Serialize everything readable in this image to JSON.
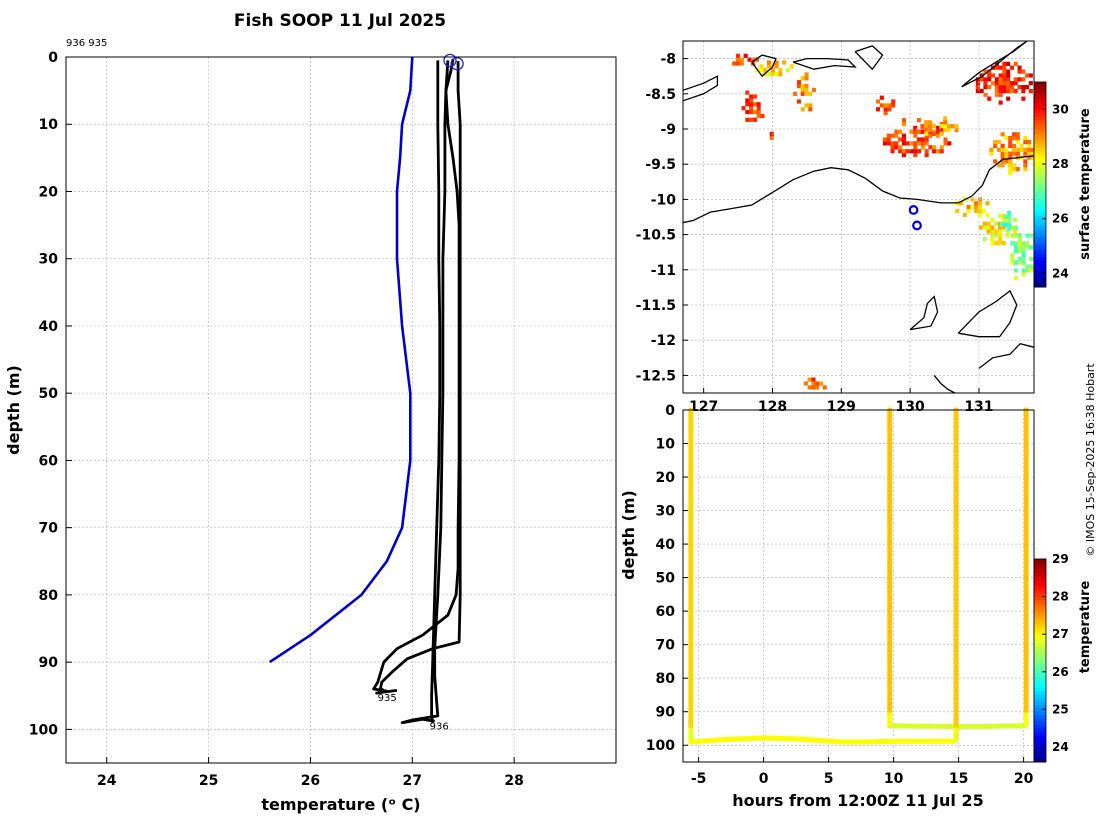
{
  "figure": {
    "title": "Fish SOOP 11 Jul 2025",
    "profile_ids": "936 935",
    "credit": "© IMOS 15-Sep-2025 16:38 Hobart"
  },
  "chart_data": [
    {
      "type": "line",
      "panel": "temperature-profile",
      "xlabel": "temperature (ᵒ C)",
      "ylabel": "depth (m)",
      "xlim": [
        23.6,
        29.0
      ],
      "ylim": [
        105,
        0
      ],
      "y_inverted": true,
      "xticks": [
        24,
        25,
        26,
        27,
        28
      ],
      "yticks": [
        0,
        10,
        20,
        30,
        40,
        50,
        60,
        70,
        80,
        90,
        100
      ],
      "grid": true,
      "colors": {
        "climatology": "#0000cc",
        "profiles": "#000000"
      },
      "series": [
        {
          "role": "climatology",
          "color": "#0000cc",
          "points": [
            [
              27.0,
              0
            ],
            [
              26.98,
              5
            ],
            [
              26.9,
              10
            ],
            [
              26.88,
              15
            ],
            [
              26.85,
              20
            ],
            [
              26.85,
              25
            ],
            [
              26.85,
              30
            ],
            [
              26.9,
              40
            ],
            [
              26.98,
              50
            ],
            [
              26.98,
              60
            ],
            [
              26.9,
              70
            ],
            [
              26.75,
              75
            ],
            [
              26.5,
              80
            ],
            [
              26.0,
              86
            ],
            [
              25.6,
              90
            ]
          ]
        },
        {
          "role": "profile",
          "label": "935",
          "color": "#000000",
          "points": [
            [
              27.4,
              0.3
            ],
            [
              27.38,
              2
            ],
            [
              27.33,
              5
            ],
            [
              27.35,
              10
            ],
            [
              27.4,
              15
            ],
            [
              27.44,
              20
            ],
            [
              27.46,
              25
            ],
            [
              27.46,
              30
            ],
            [
              27.46,
              40
            ],
            [
              27.46,
              50
            ],
            [
              27.46,
              60
            ],
            [
              27.45,
              70
            ],
            [
              27.45,
              76
            ],
            [
              27.43,
              80
            ],
            [
              27.35,
              83
            ],
            [
              27.1,
              86
            ],
            [
              26.85,
              88
            ],
            [
              26.72,
              90
            ],
            [
              26.66,
              93
            ],
            [
              26.62,
              94
            ],
            [
              26.75,
              94.3
            ],
            [
              26.65,
              94.6
            ],
            [
              26.85,
              94.2
            ]
          ]
        },
        {
          "role": "profile",
          "label": "935",
          "color": "#000000",
          "points": [
            [
              27.45,
              0.6
            ],
            [
              27.45,
              5
            ],
            [
              27.47,
              10
            ],
            [
              27.47,
              20
            ],
            [
              27.47,
              30
            ],
            [
              27.47,
              40
            ],
            [
              27.47,
              50
            ],
            [
              27.47,
              60
            ],
            [
              27.47,
              70
            ],
            [
              27.47,
              80
            ],
            [
              27.46,
              87
            ],
            [
              27.2,
              88
            ],
            [
              26.95,
              89.5
            ],
            [
              26.8,
              91.5
            ],
            [
              26.7,
              93
            ],
            [
              26.68,
              94.5
            ],
            [
              26.72,
              94
            ]
          ]
        },
        {
          "role": "profile",
          "label": "936",
          "color": "#000000",
          "points": [
            [
              27.25,
              0.5
            ],
            [
              27.25,
              5
            ],
            [
              27.25,
              10
            ],
            [
              27.26,
              20
            ],
            [
              27.26,
              30
            ],
            [
              27.27,
              40
            ],
            [
              27.27,
              50
            ],
            [
              27.26,
              60
            ],
            [
              27.24,
              70
            ],
            [
              27.22,
              80
            ],
            [
              27.2,
              90
            ],
            [
              27.19,
              95
            ],
            [
              27.19,
              98
            ],
            [
              27.2,
              99
            ]
          ]
        },
        {
          "role": "profile",
          "label": "936",
          "color": "#000000",
          "points": [
            [
              27.35,
              0.5
            ],
            [
              27.33,
              5
            ],
            [
              27.32,
              10
            ],
            [
              27.32,
              20
            ],
            [
              27.3,
              30
            ],
            [
              27.3,
              40
            ],
            [
              27.3,
              50
            ],
            [
              27.29,
              60
            ],
            [
              27.28,
              70
            ],
            [
              27.25,
              80
            ],
            [
              27.22,
              88
            ],
            [
              27.22,
              92
            ],
            [
              27.24,
              96
            ],
            [
              27.25,
              98
            ],
            [
              27.0,
              98.6
            ],
            [
              26.9,
              99
            ],
            [
              27.1,
              98.5
            ],
            [
              27.22,
              98.8
            ]
          ]
        }
      ],
      "surface_markers": [
        [
          27.37,
          0.5
        ],
        [
          27.44,
          1.0
        ]
      ],
      "annotations": [
        {
          "text": "935",
          "x": 26.66,
          "y": 95.8
        },
        {
          "text": "936",
          "x": 27.17,
          "y": 100.0
        }
      ]
    },
    {
      "type": "heatmap",
      "panel": "surface-temperature-map",
      "xlim": [
        126.7,
        131.8
      ],
      "ylim": [
        -12.75,
        -7.75
      ],
      "xticks": [
        127,
        128,
        129,
        130,
        131
      ],
      "yticks": [
        -8,
        -8.5,
        -9,
        -9.5,
        -10,
        -10.5,
        -11,
        -11.5,
        -12,
        -12.5
      ],
      "grid": true,
      "colorbar": {
        "label": "surface temperature",
        "range": [
          23.5,
          31.0
        ],
        "ticks": [
          24,
          26,
          28,
          30
        ]
      },
      "station_markers": [
        [
          130.05,
          -10.15
        ],
        [
          130.1,
          -10.37
        ]
      ],
      "coastlines": [
        [
          [
            126.7,
            -10.33
          ],
          [
            126.85,
            -10.3
          ],
          [
            127.1,
            -10.18
          ],
          [
            127.4,
            -10.13
          ],
          [
            127.7,
            -10.08
          ],
          [
            128.0,
            -9.9
          ],
          [
            128.3,
            -9.72
          ],
          [
            128.6,
            -9.6
          ],
          [
            128.85,
            -9.55
          ],
          [
            129.1,
            -9.58
          ],
          [
            129.35,
            -9.7
          ],
          [
            129.6,
            -9.88
          ],
          [
            129.85,
            -9.98
          ],
          [
            130.1,
            -10.0
          ],
          [
            130.45,
            -10.05
          ],
          [
            130.7,
            -10.05
          ],
          [
            130.9,
            -9.95
          ],
          [
            131.05,
            -9.8
          ],
          [
            131.15,
            -9.58
          ],
          [
            131.35,
            -9.43
          ],
          [
            131.8,
            -9.38
          ]
        ],
        [
          [
            126.7,
            -8.6
          ],
          [
            127.0,
            -8.5
          ],
          [
            127.2,
            -8.38
          ],
          [
            127.2,
            -8.25
          ],
          [
            127.0,
            -8.35
          ],
          [
            126.7,
            -8.45
          ]
        ],
        [
          [
            127.7,
            -8.05
          ],
          [
            127.85,
            -8.25
          ],
          [
            128.0,
            -8.12
          ],
          [
            128.05,
            -8.0
          ],
          [
            127.85,
            -7.95
          ],
          [
            127.7,
            -8.05
          ]
        ],
        [
          [
            128.3,
            -8.05
          ],
          [
            128.6,
            -8.15
          ],
          [
            128.9,
            -8.1
          ],
          [
            129.2,
            -8.12
          ],
          [
            129.1,
            -8.02
          ],
          [
            128.8,
            -8.0
          ],
          [
            128.5,
            -8.0
          ],
          [
            128.3,
            -8.05
          ]
        ],
        [
          [
            129.2,
            -7.9
          ],
          [
            129.45,
            -8.15
          ],
          [
            129.6,
            -7.95
          ],
          [
            129.45,
            -7.82
          ],
          [
            129.2,
            -7.9
          ]
        ],
        [
          [
            130.75,
            -8.4
          ],
          [
            131.05,
            -8.25
          ],
          [
            131.3,
            -8.05
          ],
          [
            131.55,
            -7.85
          ],
          [
            131.7,
            -7.75
          ],
          [
            131.5,
            -7.9
          ],
          [
            131.25,
            -8.05
          ],
          [
            131.0,
            -8.2
          ],
          [
            130.75,
            -8.4
          ]
        ],
        [
          [
            130.7,
            -11.9
          ],
          [
            130.85,
            -11.75
          ],
          [
            131.0,
            -11.6
          ],
          [
            131.25,
            -11.45
          ],
          [
            131.45,
            -11.3
          ],
          [
            131.55,
            -11.5
          ],
          [
            131.45,
            -11.75
          ],
          [
            131.3,
            -11.95
          ],
          [
            131.0,
            -11.95
          ],
          [
            130.7,
            -11.9
          ]
        ],
        [
          [
            130.0,
            -11.85
          ],
          [
            130.3,
            -11.8
          ],
          [
            130.4,
            -11.6
          ],
          [
            130.35,
            -11.38
          ],
          [
            130.25,
            -11.48
          ],
          [
            130.2,
            -11.68
          ],
          [
            130.0,
            -11.85
          ]
        ],
        [
          [
            131.0,
            -12.4
          ],
          [
            131.2,
            -12.25
          ],
          [
            131.45,
            -12.2
          ],
          [
            131.6,
            -12.05
          ],
          [
            131.8,
            -12.1
          ]
        ],
        [
          [
            130.35,
            -12.5
          ],
          [
            130.45,
            -12.62
          ],
          [
            130.55,
            -12.7
          ],
          [
            130.65,
            -12.75
          ]
        ]
      ],
      "sst_patches": [
        {
          "lon": [
            127.25,
            127.85
          ],
          "lat": [
            -8.15,
            -7.98
          ],
          "value": 29.5
        },
        {
          "lon": [
            127.7,
            128.3
          ],
          "lat": [
            -8.3,
            -8.05
          ],
          "value": 28.5
        },
        {
          "lon": [
            128.3,
            128.6
          ],
          "lat": [
            -8.8,
            -8.2
          ],
          "value": 29.2
        },
        {
          "lon": [
            127.55,
            127.85
          ],
          "lat": [
            -8.95,
            -8.45
          ],
          "value": 29.6
        },
        {
          "lon": [
            127.85,
            128.05
          ],
          "lat": [
            -9.15,
            -8.95
          ],
          "value": 29.4
        },
        {
          "lon": [
            129.45,
            129.75
          ],
          "lat": [
            -8.8,
            -8.55
          ],
          "value": 29.5
        },
        {
          "lon": [
            129.55,
            130.55
          ],
          "lat": [
            -9.45,
            -8.85
          ],
          "value": 29.6
        },
        {
          "lon": [
            130.15,
            130.65
          ],
          "lat": [
            -9.15,
            -8.85
          ],
          "value": 28.8
        },
        {
          "lon": [
            130.9,
            131.8
          ],
          "lat": [
            -8.65,
            -8.05
          ],
          "value": 29.8
        },
        {
          "lon": [
            131.15,
            131.8
          ],
          "lat": [
            -9.65,
            -9.05
          ],
          "value": 28.9
        },
        {
          "lon": [
            130.6,
            131.2
          ],
          "lat": [
            -10.3,
            -10.0
          ],
          "value": 28.6
        },
        {
          "lon": [
            131.0,
            131.6
          ],
          "lat": [
            -10.7,
            -10.25
          ],
          "value": 28.2
        },
        {
          "lon": [
            131.4,
            131.8
          ],
          "lat": [
            -11.2,
            -10.35
          ],
          "value": 27.4
        },
        {
          "lon": [
            131.3,
            131.5
          ],
          "lat": [
            -10.55,
            -10.2
          ],
          "value": 26.9
        },
        {
          "lon": [
            128.4,
            128.75
          ],
          "lat": [
            -12.75,
            -12.58
          ],
          "value": 29.5
        }
      ]
    },
    {
      "type": "scatter",
      "panel": "depth-time-section",
      "xlabel": "hours from 12:00Z 11 Jul 25",
      "ylabel": "depth (m)",
      "xlim": [
        -6.2,
        20.8
      ],
      "ylim": [
        105,
        0
      ],
      "y_inverted": true,
      "xticks": [
        -5,
        0,
        5,
        10,
        15,
        20
      ],
      "yticks": [
        0,
        10,
        20,
        30,
        40,
        50,
        60,
        70,
        80,
        90,
        100
      ],
      "grid": true,
      "colorbar": {
        "label": "temperature",
        "range": [
          23.6,
          29.0
        ],
        "ticks": [
          24,
          25,
          26,
          27,
          28,
          29
        ]
      },
      "casts": [
        {
          "hour": -5.6,
          "max_depth": 99,
          "temperature": 27.2
        },
        {
          "hour": 9.7,
          "max_depth": 94.3,
          "temperature": 27.3
        },
        {
          "hour": 14.8,
          "max_depth": 99,
          "temperature": 27.25
        },
        {
          "hour": 20.2,
          "max_depth": 94.3,
          "temperature": 27.3
        }
      ],
      "bottom_tracks": [
        {
          "temperature": 26.95,
          "points": [
            [
              -5.6,
              99
            ],
            [
              -3,
              98.3
            ],
            [
              0,
              97.8
            ],
            [
              3,
              98.2
            ],
            [
              6,
              99
            ],
            [
              8,
              99
            ],
            [
              10,
              98.8
            ],
            [
              12,
              98.8
            ],
            [
              14.8,
              98.8
            ]
          ]
        },
        {
          "temperature": 26.75,
          "points": [
            [
              9.7,
              94.2
            ],
            [
              12,
              94.3
            ],
            [
              14.8,
              94.4
            ],
            [
              17,
              94.4
            ],
            [
              19,
              94.2
            ],
            [
              20.2,
              94.2
            ]
          ]
        }
      ]
    }
  ]
}
